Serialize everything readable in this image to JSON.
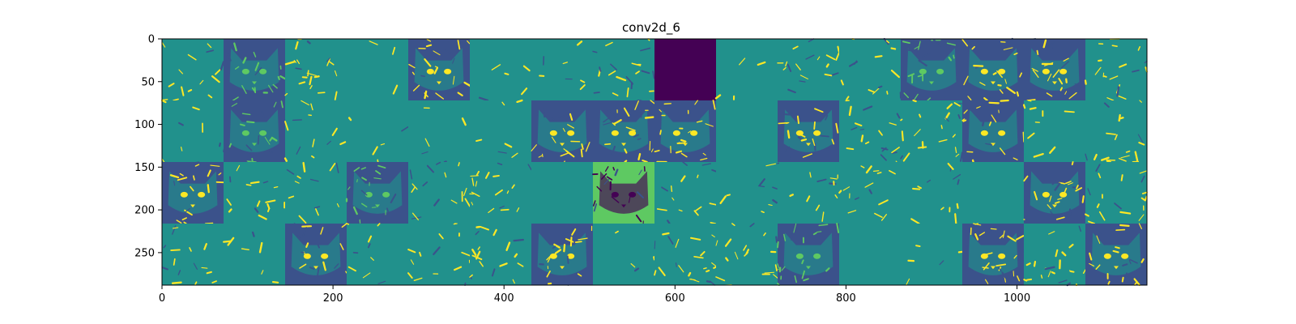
{
  "chart_data": {
    "type": "heatmap",
    "title": "conv2d_6",
    "xlabel": "",
    "ylabel": "",
    "colormap": "viridis",
    "x_ticks": [
      0,
      200,
      400,
      600,
      800,
      1000
    ],
    "y_ticks": [
      0,
      50,
      100,
      150,
      200,
      250
    ],
    "xlim": [
      0,
      1152
    ],
    "ylim": [
      288,
      0
    ],
    "grid": {
      "rows": 4,
      "cols": 16,
      "tile_size": 72,
      "content_description": "4x16 grid of convolutional feature-map activations of a cat face"
    },
    "palette": {
      "dark": "#440154",
      "mid_dark": "#3b528b",
      "mid": "#21918c",
      "light": "#5ec962",
      "bright": "#fde725"
    },
    "tiles": [
      {
        "row": 0,
        "col": 0,
        "base": "#21918c",
        "edge": "#fde725",
        "density": 0.25,
        "face": false
      },
      {
        "row": 0,
        "col": 1,
        "base": "#3b528b",
        "edge": "#5ec962",
        "density": 0.3,
        "face": true
      },
      {
        "row": 0,
        "col": 2,
        "base": "#21918c",
        "edge": "#fde725",
        "density": 0.35,
        "face": false
      },
      {
        "row": 0,
        "col": 3,
        "base": "#21918c",
        "edge": "#fde725",
        "density": 0.05,
        "face": false
      },
      {
        "row": 0,
        "col": 4,
        "base": "#3b528b",
        "edge": "#fde725",
        "density": 0.35,
        "face": true
      },
      {
        "row": 0,
        "col": 5,
        "base": "#21918c",
        "edge": "#fde725",
        "density": 0.08,
        "face": false
      },
      {
        "row": 0,
        "col": 6,
        "base": "#21918c",
        "edge": "#fde725",
        "density": 0.12,
        "face": false
      },
      {
        "row": 0,
        "col": 7,
        "base": "#21918c",
        "edge": "#fde725",
        "density": 0.35,
        "face": false
      },
      {
        "row": 0,
        "col": 8,
        "base": "#440154",
        "edge": "#440154",
        "density": 0,
        "face": false
      },
      {
        "row": 0,
        "col": 9,
        "base": "#21918c",
        "edge": "#fde725",
        "density": 0.06,
        "face": false
      },
      {
        "row": 0,
        "col": 10,
        "base": "#21918c",
        "edge": "#fde725",
        "density": 0.3,
        "face": false
      },
      {
        "row": 0,
        "col": 11,
        "base": "#21918c",
        "edge": "#fde725",
        "density": 0.25,
        "face": false
      },
      {
        "row": 0,
        "col": 12,
        "base": "#3b528b",
        "edge": "#5ec962",
        "density": 0.3,
        "face": true
      },
      {
        "row": 0,
        "col": 13,
        "base": "#3b528b",
        "edge": "#fde725",
        "density": 0.35,
        "face": true
      },
      {
        "row": 0,
        "col": 14,
        "base": "#3b528b",
        "edge": "#fde725",
        "density": 0.4,
        "face": true
      },
      {
        "row": 0,
        "col": 15,
        "base": "#21918c",
        "edge": "#fde725",
        "density": 0.3,
        "face": false
      },
      {
        "row": 1,
        "col": 0,
        "base": "#21918c",
        "edge": "#fde725",
        "density": 0.12,
        "face": false
      },
      {
        "row": 1,
        "col": 1,
        "base": "#3b528b",
        "edge": "#5ec962",
        "density": 0.3,
        "face": true
      },
      {
        "row": 1,
        "col": 2,
        "base": "#21918c",
        "edge": "#fde725",
        "density": 0.2,
        "face": false
      },
      {
        "row": 1,
        "col": 3,
        "base": "#21918c",
        "edge": "#fde725",
        "density": 0.08,
        "face": false
      },
      {
        "row": 1,
        "col": 4,
        "base": "#21918c",
        "edge": "#fde725",
        "density": 0.08,
        "face": false
      },
      {
        "row": 1,
        "col": 5,
        "base": "#21918c",
        "edge": "#fde725",
        "density": 0.1,
        "face": false
      },
      {
        "row": 1,
        "col": 6,
        "base": "#3b528b",
        "edge": "#fde725",
        "density": 0.3,
        "face": true
      },
      {
        "row": 1,
        "col": 7,
        "base": "#3b528b",
        "edge": "#fde725",
        "density": 0.4,
        "face": true
      },
      {
        "row": 1,
        "col": 8,
        "base": "#3b528b",
        "edge": "#fde725",
        "density": 0.35,
        "face": true
      },
      {
        "row": 1,
        "col": 9,
        "base": "#21918c",
        "edge": "#fde725",
        "density": 0.0,
        "face": false
      },
      {
        "row": 1,
        "col": 10,
        "base": "#3b528b",
        "edge": "#fde725",
        "density": 0.35,
        "face": true
      },
      {
        "row": 1,
        "col": 11,
        "base": "#21918c",
        "edge": "#fde725",
        "density": 0.3,
        "face": false
      },
      {
        "row": 1,
        "col": 12,
        "base": "#21918c",
        "edge": "#fde725",
        "density": 0.35,
        "face": false
      },
      {
        "row": 1,
        "col": 13,
        "base": "#3b528b",
        "edge": "#fde725",
        "density": 0.35,
        "face": true
      },
      {
        "row": 1,
        "col": 14,
        "base": "#21918c",
        "edge": "#fde725",
        "density": 0.15,
        "face": false
      },
      {
        "row": 1,
        "col": 15,
        "base": "#21918c",
        "edge": "#fde725",
        "density": 0.3,
        "face": false
      },
      {
        "row": 2,
        "col": 0,
        "base": "#3b528b",
        "edge": "#fde725",
        "density": 0.35,
        "face": true
      },
      {
        "row": 2,
        "col": 1,
        "base": "#21918c",
        "edge": "#fde725",
        "density": 0.25,
        "face": false
      },
      {
        "row": 2,
        "col": 2,
        "base": "#21918c",
        "edge": "#fde725",
        "density": 0.2,
        "face": false
      },
      {
        "row": 2,
        "col": 3,
        "base": "#3b528b",
        "edge": "#5ec962",
        "density": 0.3,
        "face": true
      },
      {
        "row": 2,
        "col": 4,
        "base": "#21918c",
        "edge": "#fde725",
        "density": 0.25,
        "face": false
      },
      {
        "row": 2,
        "col": 5,
        "base": "#21918c",
        "edge": "#fde725",
        "density": 0.3,
        "face": false
      },
      {
        "row": 2,
        "col": 6,
        "base": "#21918c",
        "edge": "#21918c",
        "density": 0.0,
        "face": false
      },
      {
        "row": 2,
        "col": 7,
        "base": "#5ec962",
        "edge": "#440154",
        "density": 0.3,
        "face": true
      },
      {
        "row": 2,
        "col": 8,
        "base": "#21918c",
        "edge": "#fde725",
        "density": 0.25,
        "face": false
      },
      {
        "row": 2,
        "col": 9,
        "base": "#21918c",
        "edge": "#fde725",
        "density": 0.15,
        "face": false
      },
      {
        "row": 2,
        "col": 10,
        "base": "#21918c",
        "edge": "#fde725",
        "density": 0.2,
        "face": false
      },
      {
        "row": 2,
        "col": 11,
        "base": "#21918c",
        "edge": "#fde725",
        "density": 0.25,
        "face": false
      },
      {
        "row": 2,
        "col": 12,
        "base": "#21918c",
        "edge": "#fde725",
        "density": 0.2,
        "face": false
      },
      {
        "row": 2,
        "col": 13,
        "base": "#21918c",
        "edge": "#21918c",
        "density": 0.0,
        "face": false
      },
      {
        "row": 2,
        "col": 14,
        "base": "#3b528b",
        "edge": "#fde725",
        "density": 0.35,
        "face": true
      },
      {
        "row": 2,
        "col": 15,
        "base": "#21918c",
        "edge": "#fde725",
        "density": 0.3,
        "face": false
      },
      {
        "row": 3,
        "col": 0,
        "base": "#21918c",
        "edge": "#fde725",
        "density": 0.25,
        "face": false
      },
      {
        "row": 3,
        "col": 1,
        "base": "#21918c",
        "edge": "#fde725",
        "density": 0.12,
        "face": false
      },
      {
        "row": 3,
        "col": 2,
        "base": "#3b528b",
        "edge": "#fde725",
        "density": 0.3,
        "face": true
      },
      {
        "row": 3,
        "col": 3,
        "base": "#21918c",
        "edge": "#fde725",
        "density": 0.15,
        "face": false
      },
      {
        "row": 3,
        "col": 4,
        "base": "#21918c",
        "edge": "#fde725",
        "density": 0.25,
        "face": false
      },
      {
        "row": 3,
        "col": 5,
        "base": "#21918c",
        "edge": "#fde725",
        "density": 0.3,
        "face": false
      },
      {
        "row": 3,
        "col": 6,
        "base": "#3b528b",
        "edge": "#fde725",
        "density": 0.35,
        "face": true
      },
      {
        "row": 3,
        "col": 7,
        "base": "#21918c",
        "edge": "#fde725",
        "density": 0.06,
        "face": false
      },
      {
        "row": 3,
        "col": 8,
        "base": "#21918c",
        "edge": "#fde725",
        "density": 0.35,
        "face": false
      },
      {
        "row": 3,
        "col": 9,
        "base": "#21918c",
        "edge": "#fde725",
        "density": 0.3,
        "face": false
      },
      {
        "row": 3,
        "col": 10,
        "base": "#3b528b",
        "edge": "#5ec962",
        "density": 0.35,
        "face": true
      },
      {
        "row": 3,
        "col": 11,
        "base": "#21918c",
        "edge": "#21918c",
        "density": 0.0,
        "face": false
      },
      {
        "row": 3,
        "col": 12,
        "base": "#21918c",
        "edge": "#fde725",
        "density": 0.08,
        "face": false
      },
      {
        "row": 3,
        "col": 13,
        "base": "#3b528b",
        "edge": "#fde725",
        "density": 0.4,
        "face": true
      },
      {
        "row": 3,
        "col": 14,
        "base": "#21918c",
        "edge": "#fde725",
        "density": 0.35,
        "face": false
      },
      {
        "row": 3,
        "col": 15,
        "base": "#3b528b",
        "edge": "#fde725",
        "density": 0.35,
        "face": true
      }
    ]
  }
}
